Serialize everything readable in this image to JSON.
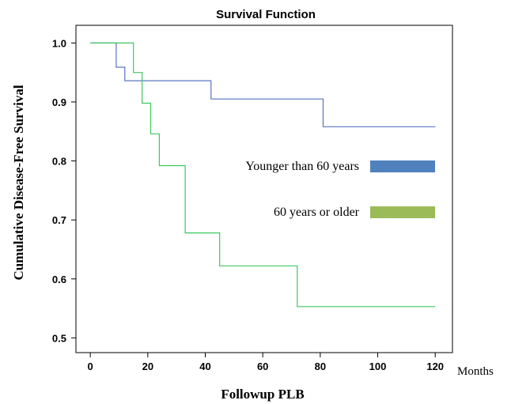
{
  "chart_data": {
    "type": "line",
    "title": "Survival Function",
    "xlabel": "Followup PLB",
    "ylabel": "Cumulative Disease-Free Survival",
    "x_unit": "Months",
    "xlim": [
      -5,
      126
    ],
    "ylim": [
      0.475,
      1.03
    ],
    "x_ticks": [
      0,
      20,
      40,
      60,
      80,
      100,
      120
    ],
    "y_ticks": [
      0.5,
      0.6,
      0.7,
      0.8,
      0.9,
      1.0
    ],
    "x_tick_labels": [
      "0",
      "20",
      "40",
      "60",
      "80",
      "100",
      "120"
    ],
    "y_tick_labels": [
      "0.5",
      "0.6",
      "0.7",
      "0.8",
      "0.9",
      "1.0"
    ],
    "grid": false,
    "legend_position": "right-middle",
    "series": [
      {
        "name": "Younger than 60 years",
        "color": "#5a74c0",
        "legend_color": "#4f81bd",
        "step": true,
        "x": [
          0,
          9,
          12,
          42,
          81,
          120
        ],
        "y": [
          1.0,
          0.959,
          0.936,
          0.905,
          0.858,
          0.858
        ]
      },
      {
        "name": "60 years or older",
        "color": "#3cc860",
        "legend_color": "#9bbb59",
        "step": true,
        "x": [
          0,
          15,
          18,
          21,
          24,
          33,
          45,
          72,
          120
        ],
        "y": [
          1.0,
          0.95,
          0.898,
          0.846,
          0.792,
          0.678,
          0.622,
          0.553,
          0.553
        ]
      }
    ]
  }
}
